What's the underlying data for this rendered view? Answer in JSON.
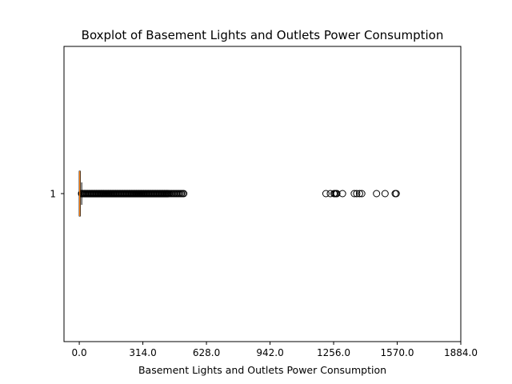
{
  "chart_data": {
    "type": "boxplot",
    "orientation": "horizontal",
    "title": "Boxplot of Basement Lights and Outlets Power Consumption",
    "xlabel": "Basement Lights and Outlets Power Consumption",
    "ylabel": "",
    "xlim": [
      -75.4,
      1884.0
    ],
    "x_ticks": [
      "0.0",
      "314.0",
      "628.0",
      "942.0",
      "1256.0",
      "1570.0",
      "1884.0"
    ],
    "x_tick_values": [
      0,
      314,
      628,
      942,
      1256,
      1570,
      1884
    ],
    "categories": [
      "1"
    ],
    "series": [
      {
        "box": {
          "q1": 0,
          "median": 2,
          "q3": 5,
          "whisker_low": 0,
          "whisker_high": 12
        },
        "outlier_range_dense": [
          12,
          520
        ],
        "outliers_sparse": [
          1218,
          1240,
          1258,
          1263,
          1268,
          1272,
          1300,
          1358,
          1370,
          1384,
          1395,
          1468,
          1510,
          1560,
          1565
        ]
      }
    ]
  }
}
